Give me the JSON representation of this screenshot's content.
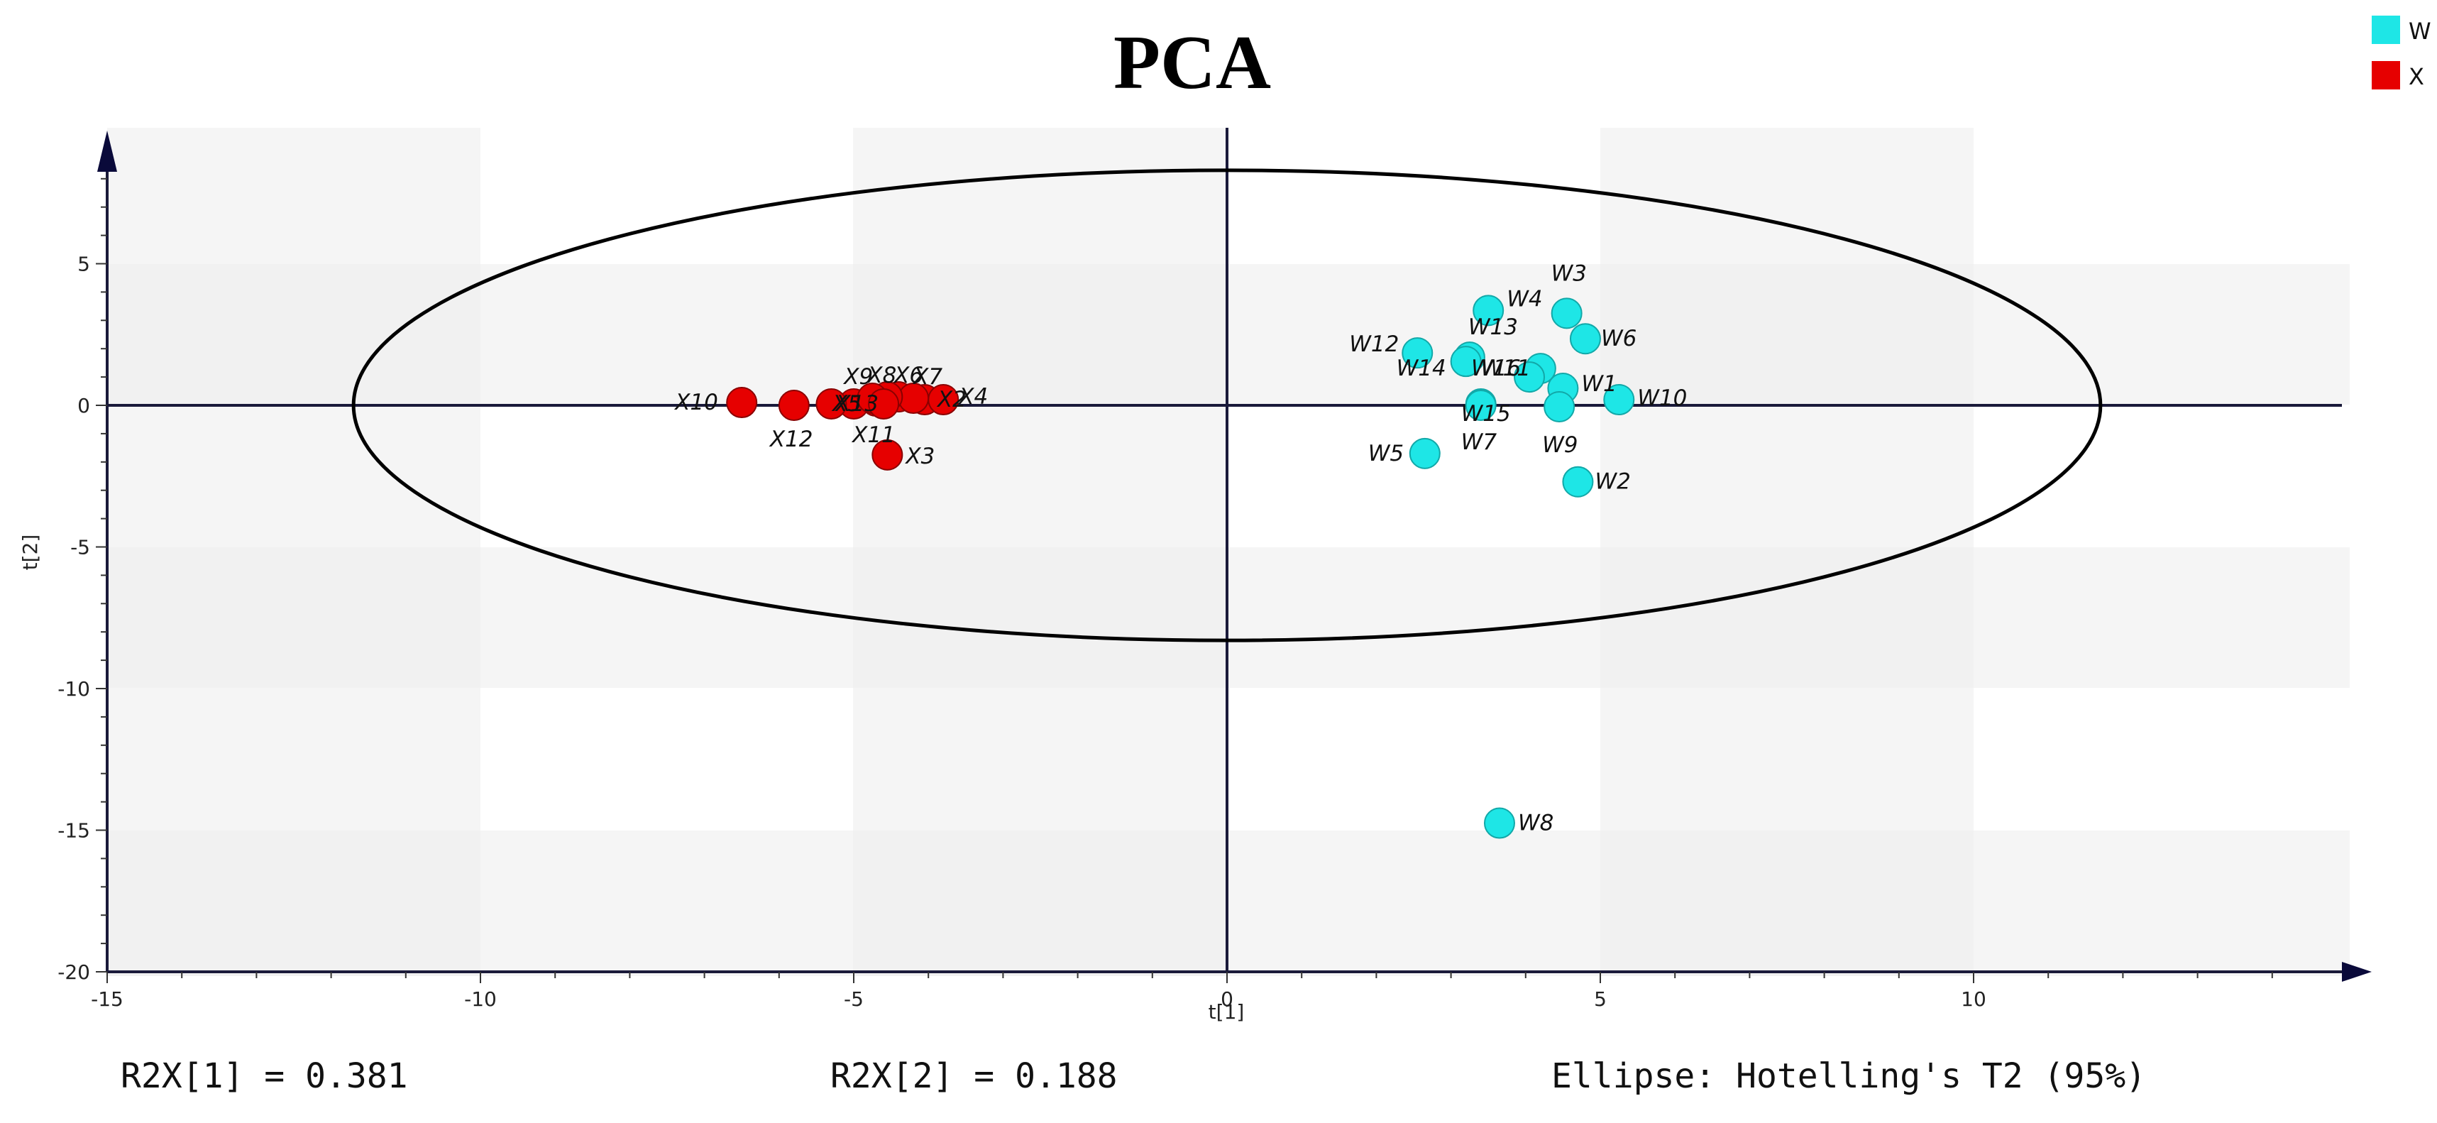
{
  "chart_data": {
    "type": "scatter",
    "title": "PCA",
    "xlabel": "t[1]",
    "ylabel": "t[2]",
    "xlim": [
      -15,
      15
    ],
    "ylim": [
      -20,
      9.5
    ],
    "x_ticks": [
      -15,
      -10,
      -5,
      0,
      5,
      10
    ],
    "y_ticks": [
      5,
      0,
      -5,
      -10,
      -15,
      -20
    ],
    "legend": [
      {
        "name": "W",
        "color": "#1ee6e6"
      },
      {
        "name": "X",
        "color": "#e60000"
      }
    ],
    "ellipse": {
      "label": "Hotelling's T2 (95%)",
      "rx": 11.7,
      "ry": 8.3
    },
    "series": [
      {
        "name": "W",
        "color": "#1ee6e6",
        "points": [
          {
            "label": "W1",
            "x": 4.5,
            "y": 0.6
          },
          {
            "label": "W2",
            "x": 4.7,
            "y": -2.7
          },
          {
            "label": "W3",
            "x": 4.55,
            "y": 3.25
          },
          {
            "label": "W4",
            "x": 3.5,
            "y": 3.35
          },
          {
            "label": "W5",
            "x": 2.65,
            "y": -1.7
          },
          {
            "label": "W6",
            "x": 4.8,
            "y": 2.35
          },
          {
            "label": "W7",
            "x": 3.4,
            "y": 0.05
          },
          {
            "label": "W8",
            "x": 3.65,
            "y": -14.75
          },
          {
            "label": "W9",
            "x": 4.45,
            "y": -0.05
          },
          {
            "label": "W10",
            "x": 5.25,
            "y": 0.2
          },
          {
            "label": "W11",
            "x": 4.2,
            "y": 1.3
          },
          {
            "label": "W12",
            "x": 2.55,
            "y": 1.85
          },
          {
            "label": "W13",
            "x": 3.25,
            "y": 1.7
          },
          {
            "label": "W14",
            "x": 3.2,
            "y": 1.55
          },
          {
            "label": "W15",
            "x": 3.4,
            "y": 0.0
          },
          {
            "label": "W16",
            "x": 4.05,
            "y": 1.0
          }
        ]
      },
      {
        "name": "X",
        "color": "#e60000",
        "points": [
          {
            "label": "X1",
            "x": -4.7,
            "y": 0.15
          },
          {
            "label": "X2",
            "x": -4.05,
            "y": 0.2
          },
          {
            "label": "X3",
            "x": -4.55,
            "y": -1.75
          },
          {
            "label": "X4",
            "x": -3.8,
            "y": 0.2
          },
          {
            "label": "X5",
            "x": -5.0,
            "y": 0.05
          },
          {
            "label": "X6",
            "x": -4.4,
            "y": 0.3
          },
          {
            "label": "X7",
            "x": -4.2,
            "y": 0.25
          },
          {
            "label": "X8",
            "x": -4.55,
            "y": 0.3
          },
          {
            "label": "X9",
            "x": -4.75,
            "y": 0.25
          },
          {
            "label": "X10",
            "x": -6.5,
            "y": 0.1
          },
          {
            "label": "X11",
            "x": -4.6,
            "y": 0.05
          },
          {
            "label": "X12",
            "x": -5.8,
            "y": 0.0
          },
          {
            "label": "X13",
            "x": -5.3,
            "y": 0.05
          }
        ]
      }
    ]
  },
  "footer": {
    "r2x1": "R2X[1] = 0.381",
    "r2x2": "R2X[2] = 0.188",
    "ellipse_note": "Ellipse: Hotelling's T2 (95%)"
  }
}
